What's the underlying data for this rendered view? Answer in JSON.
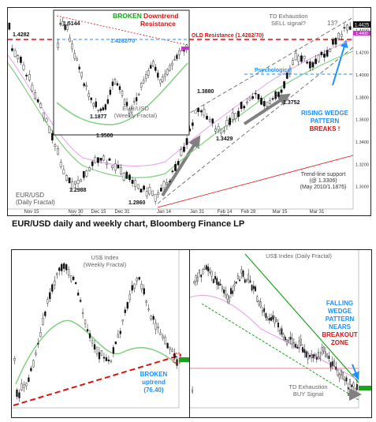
{
  "caption": "EUR/USD daily and weekly chart, Bloomberg Finance LP",
  "colors": {
    "candle": "#111111",
    "ma_green": "#7fd07f",
    "ma_pink": "#e8a0e8",
    "red": "#dd1111",
    "blue": "#1e90ff",
    "green": "#16a516",
    "gray_arrow": "#808080"
  },
  "chart_data": [
    {
      "id": "eurusd_daily",
      "type": "candlestick",
      "title": "EUR/USD\n(Daily Fractal)",
      "x_ticks": [
        "Nov 15",
        "Nov 30\n2010",
        "Dec 15",
        "Dec 31",
        "Jan 14",
        "Jan 31",
        "Feb 14\n2011",
        "Feb 28",
        "Mar 15",
        "Mar 31"
      ],
      "y_ticks": [
        "1.4400",
        "1.4200",
        "1.4000",
        "1.3800",
        "1.3600",
        "1.3400",
        "1.3200",
        "1.3000"
      ],
      "ylim": [
        1.28,
        1.46
      ],
      "price_tag_top": "1.4425",
      "price_tag_mid": "1.4400",
      "labels": {
        "level_left": "1.4282",
        "old_resistance": "OLD Resistance (1.4282/70)",
        "psychological": "Psychological",
        "td": "TD Exhaustion\nSELL signal?",
        "td_count": "13?",
        "rising_wedge": "RISING WEDGE\nPATTERN\nBREAKS !",
        "trendline": "Trend-line support\n(@ 1.3306)\n(May 2010/1.1876)",
        "p1": "1.3880",
        "p2": "1.3752",
        "p3": "1.3429",
        "p4": "1.3500",
        "p5": "1.2988",
        "p6": "1.2860"
      }
    },
    {
      "id": "eurusd_weekly_inset",
      "type": "candlestick",
      "title": "EUR/USD\n(Weekly Fractal)",
      "labels": {
        "broken": "BROKEN",
        "downtrend": "Downtrend",
        "resistance": "Resistance",
        "level": "1.4282/70",
        "high": "1.5144",
        "low": "1.1877"
      }
    },
    {
      "id": "usd_index_weekly",
      "type": "candlestick",
      "title": "US$ Index\n(Weekly Fractal)",
      "labels": {
        "broken": "BROKEN\nuptrend\n(76.40)"
      }
    },
    {
      "id": "usd_index_daily",
      "type": "candlestick",
      "title": "US$ Index (Daily Fractal)",
      "labels": {
        "falling_wedge": "FALLING\nWEDGE\nPATTERN\nNEARS",
        "breakout": "BREAKOUT\nZONE",
        "td": "TD Exhaustion\nBUY Signal",
        "td_count": "13?"
      }
    }
  ]
}
